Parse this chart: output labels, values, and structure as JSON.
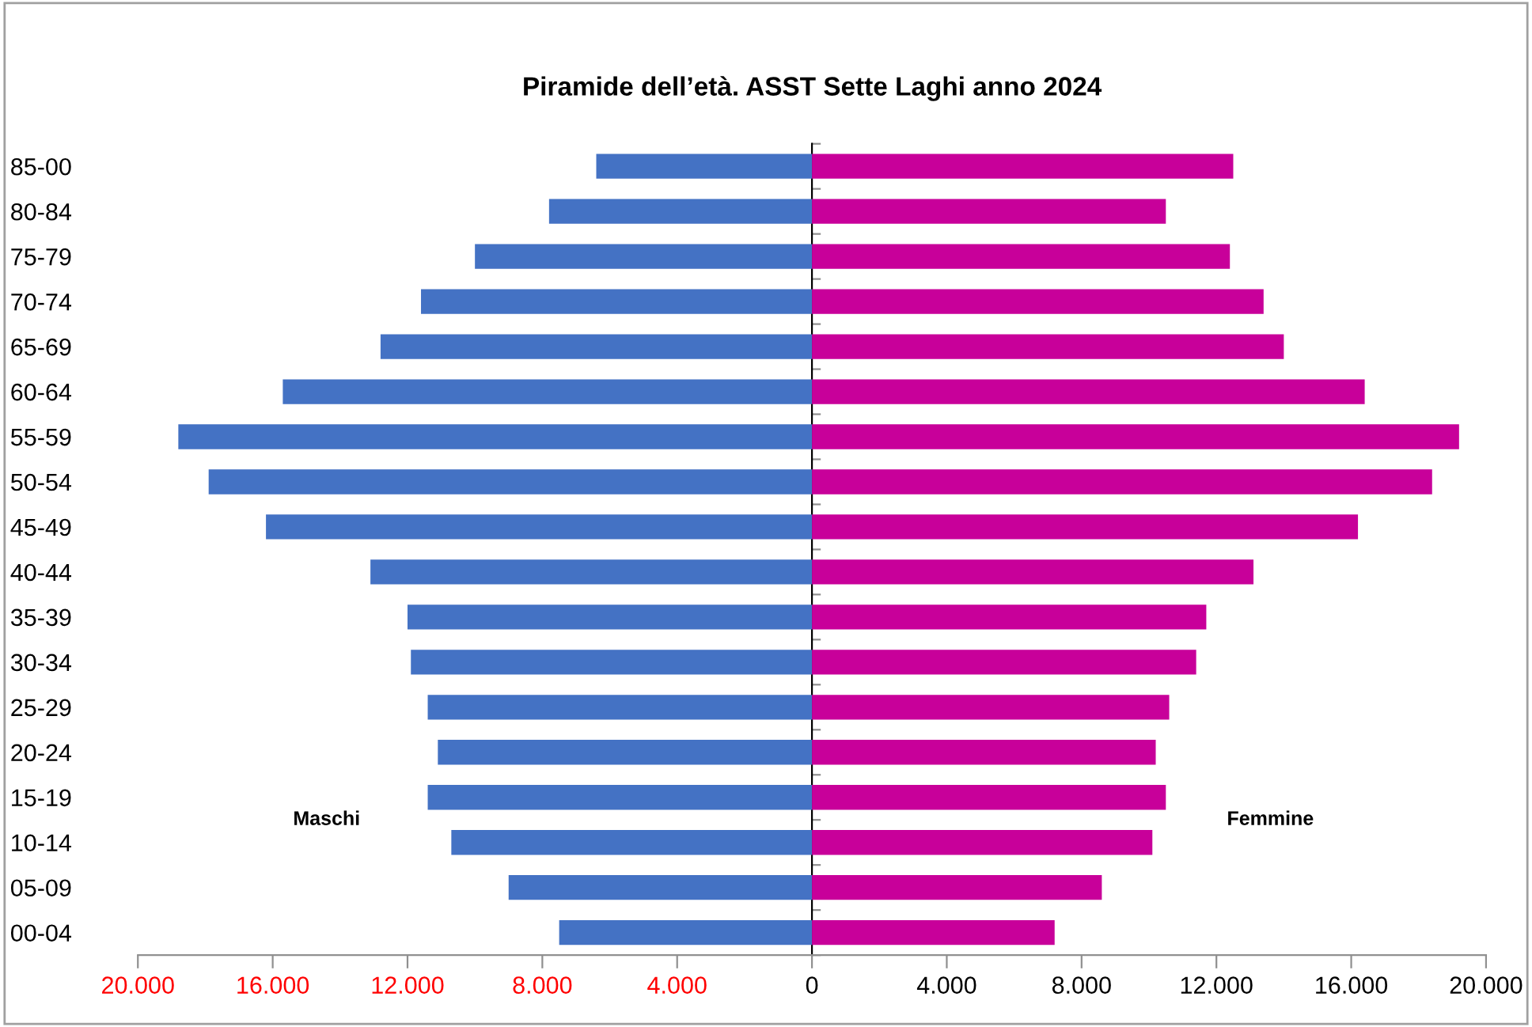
{
  "chart_data": {
    "type": "bar",
    "orientation": "horizontal",
    "title": "Piramide dell’età. ASST Sette Laghi anno 2024",
    "categories": [
      "85-00",
      "80-84",
      "75-79",
      "70-74",
      "65-69",
      "60-64",
      "55-59",
      "50-54",
      "45-49",
      "40-44",
      "35-39",
      "30-34",
      "25-29",
      "20-24",
      "15-19",
      "10-14",
      "05-09",
      "00-04"
    ],
    "series": [
      {
        "color": "#4472c4",
        "values": [
          -6400,
          -7800,
          -10000,
          -11600,
          -12800,
          -15700,
          -18800,
          -17900,
          -16200,
          -13100,
          -12000,
          -11900,
          -11400,
          -11100,
          -11400,
          -10700,
          -9000,
          -7500
        ]
      },
      {
        "color": "#c8009a",
        "values": [
          12500,
          10500,
          12400,
          13400,
          14000,
          16400,
          19200,
          18400,
          16200,
          13100,
          11700,
          11400,
          10600,
          10200,
          10500,
          10100,
          8600,
          7200
        ]
      }
    ],
    "xlim": [
      -20000,
      20000
    ],
    "xticks": [
      {
        "value": -20000,
        "label": "20.000"
      },
      {
        "value": -16000,
        "label": "16.000"
      },
      {
        "value": -12000,
        "label": "12.000"
      },
      {
        "value": -8000,
        "label": "8.000"
      },
      {
        "value": -4000,
        "label": "4.000"
      },
      0,
      {
        "value": 4000,
        "label": "4.000"
      },
      {
        "value": 8000,
        "label": "8.000"
      },
      {
        "value": 12000,
        "label": "12.000"
      },
      {
        "value": 16000,
        "label": "16.000"
      },
      {
        "value": 20000,
        "label": "20.000"
      }
    ],
    "stacked": true,
    "annotations": [
      "Maschi",
      "Femmine"
    ],
    "legend": false
  }
}
